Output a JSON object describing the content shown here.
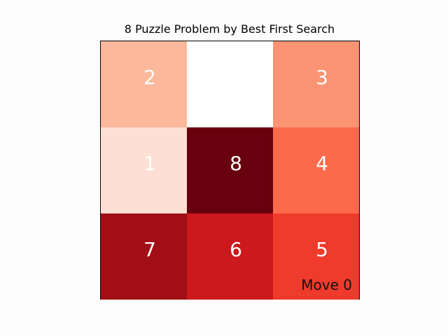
{
  "title": "8 Puzzle Problem by Best First Search",
  "move_label": "Move 0",
  "board": {
    "rows": 3,
    "cols": 3,
    "cells": [
      {
        "value": "2",
        "color": "#fcb89b"
      },
      {
        "value": "",
        "color": "#ffffff"
      },
      {
        "value": "3",
        "color": "#fc9373"
      },
      {
        "value": "1",
        "color": "#fde0d3"
      },
      {
        "value": "8",
        "color": "#68000d"
      },
      {
        "value": "4",
        "color": "#fb6a4a"
      },
      {
        "value": "7",
        "color": "#a10e16"
      },
      {
        "value": "6",
        "color": "#cc191e"
      },
      {
        "value": "5",
        "color": "#ef3b2c"
      }
    ]
  }
}
